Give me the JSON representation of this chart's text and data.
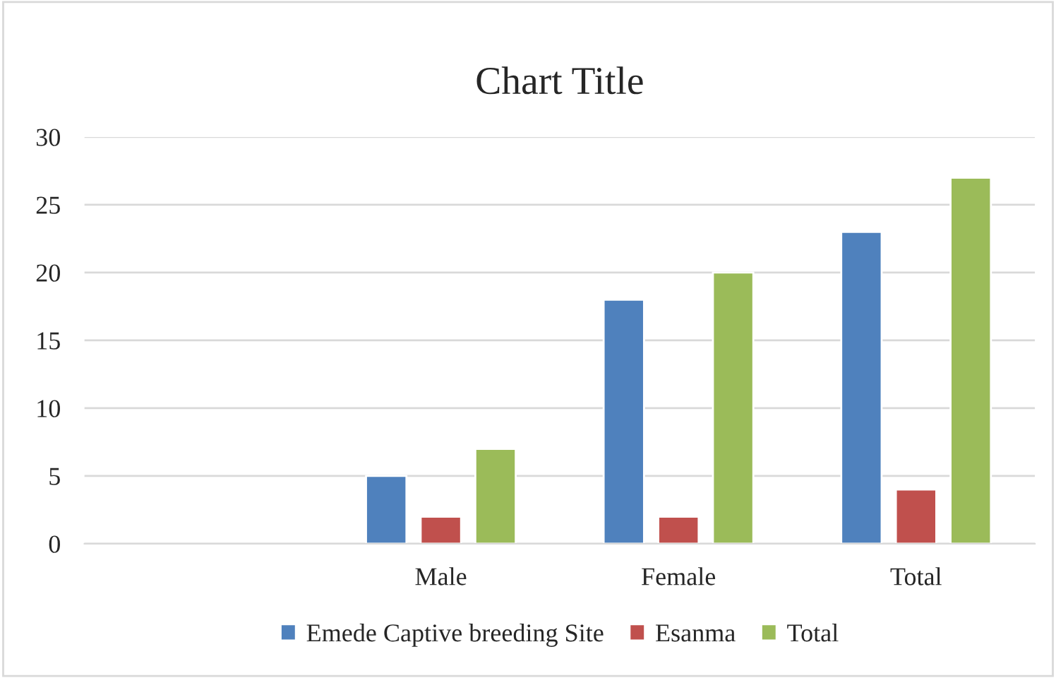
{
  "chart_data": {
    "type": "bar",
    "title": "Chart Title",
    "categories": [
      null,
      "Male",
      "Female",
      "Total"
    ],
    "series": [
      {
        "name": "Emede Captive breeding Site",
        "color": "#4f81bd",
        "values": [
          null,
          5,
          18,
          23
        ]
      },
      {
        "name": "Esanma",
        "color": "#c0504d",
        "values": [
          null,
          2,
          2,
          4
        ]
      },
      {
        "name": "Total",
        "color": "#9bbb59",
        "values": [
          null,
          7,
          20,
          27
        ]
      }
    ],
    "ylim": [
      0,
      30
    ],
    "yticks": [
      0,
      5,
      10,
      15,
      20,
      25,
      30
    ],
    "grid": "y",
    "legend": "bottom"
  }
}
